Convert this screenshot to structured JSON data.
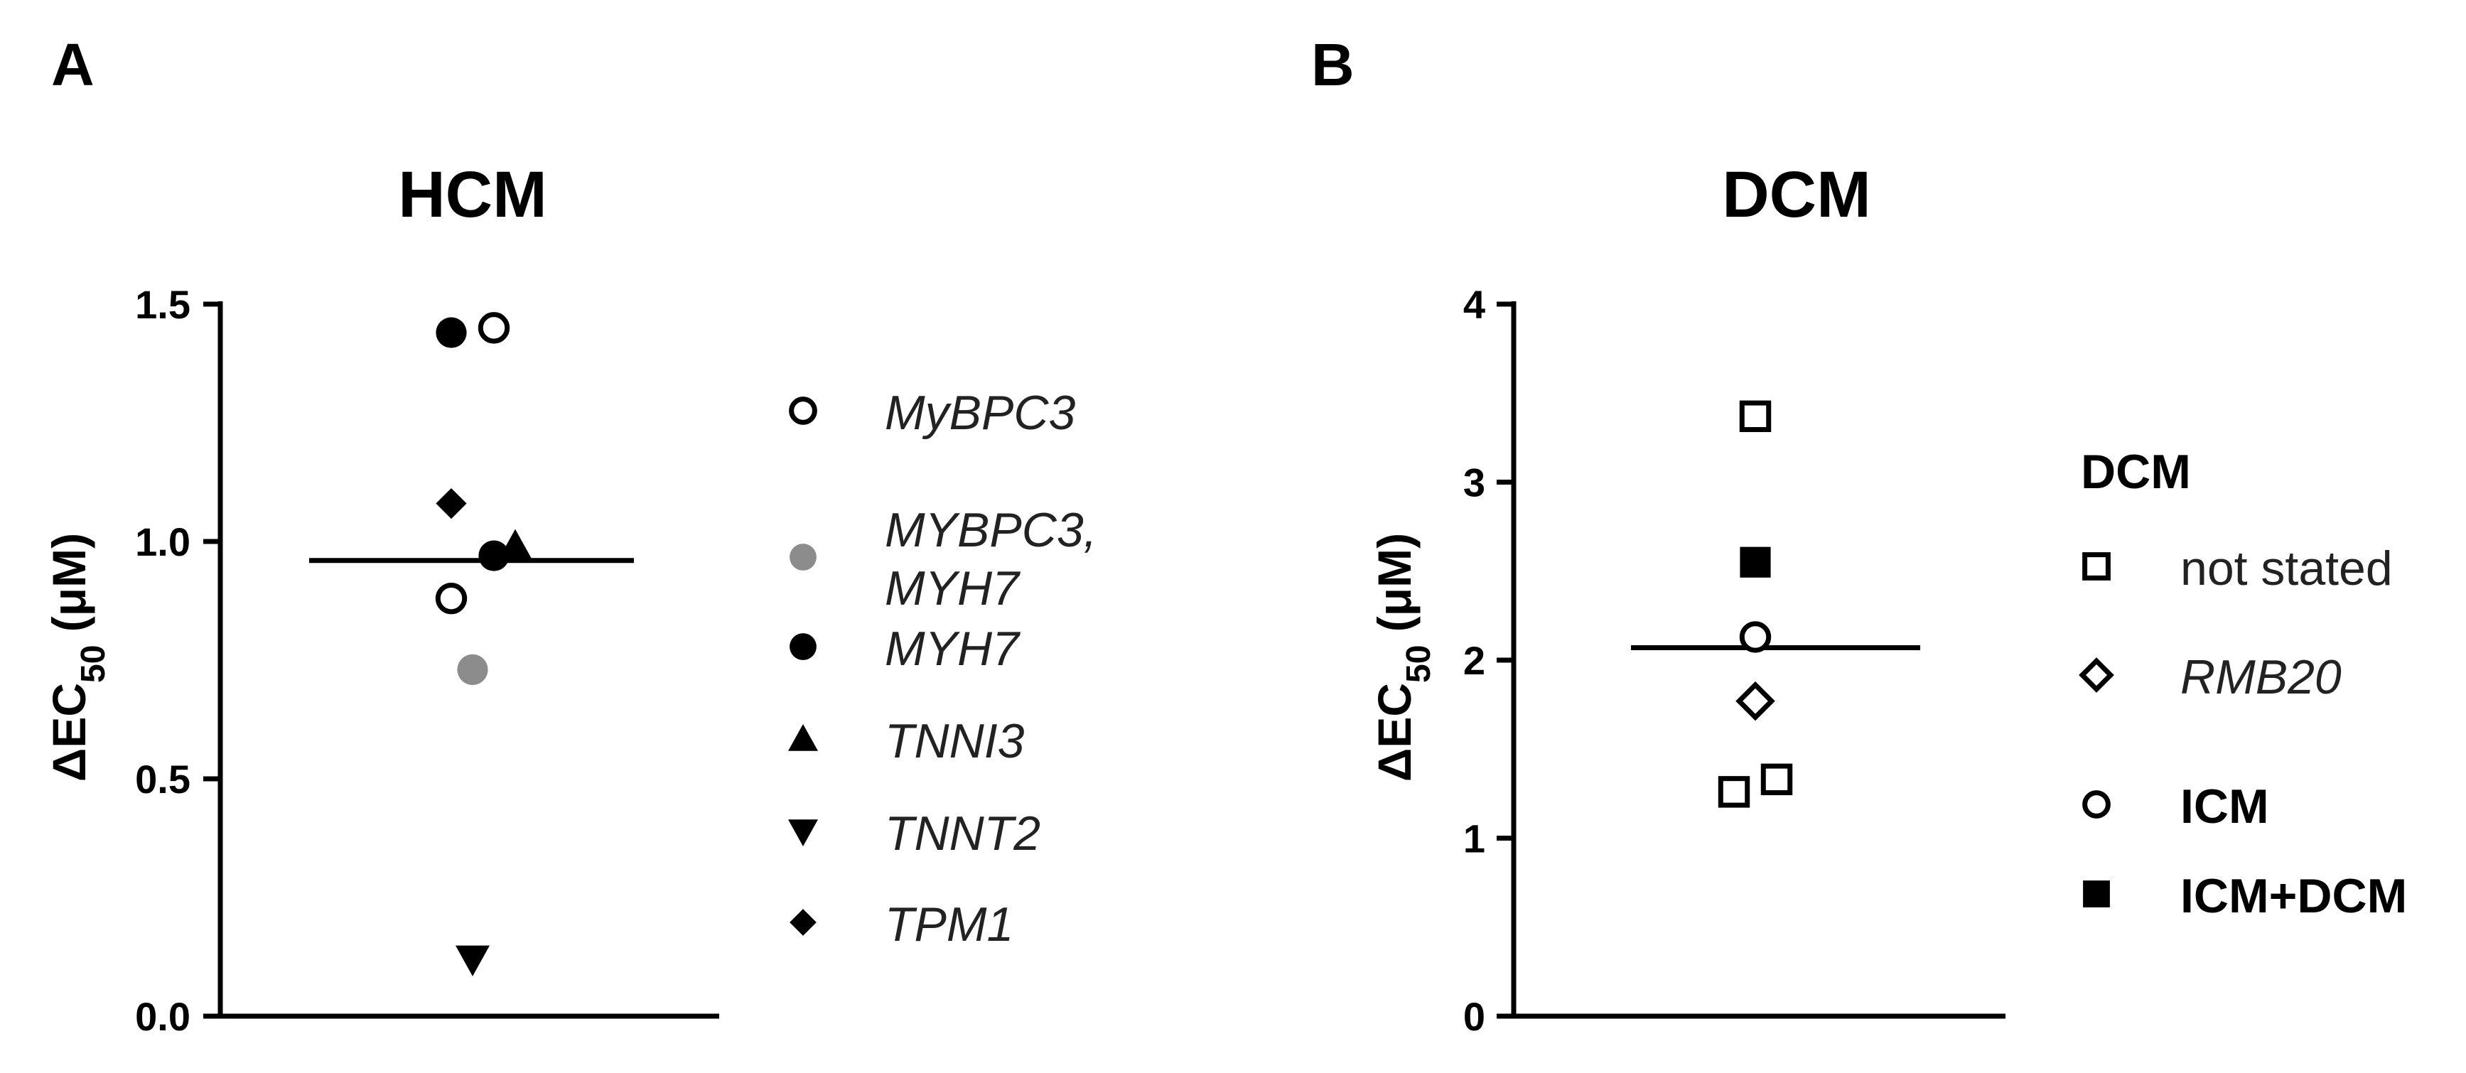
{
  "panels": {
    "a": {
      "letter": "A"
    },
    "b": {
      "letter": "B"
    }
  },
  "chart_data": [
    {
      "type": "scatter",
      "title": "HCM",
      "ylabel_prefix": "ΔEC",
      "ylabel_sub": "50",
      "ylabel_suffix": " (μM)",
      "ylim": [
        0,
        1.5
      ],
      "yticks": [
        {
          "value": 0,
          "label": "0.0"
        },
        {
          "value": 0.5,
          "label": "0.5"
        },
        {
          "value": 1.0,
          "label": "1.0"
        },
        {
          "value": 1.5,
          "label": "1.5"
        }
      ],
      "mean": 0.96,
      "grid": false,
      "legend_position": "right",
      "legend": [
        {
          "key": "mybpc3",
          "lines": [
            "MyBPC3"
          ],
          "marker": "circle-open",
          "color": "#000000",
          "italic": true
        },
        {
          "key": "mybpc3_myh7",
          "lines": [
            "MYBPC3,",
            "MYH7"
          ],
          "marker": "circle-filled",
          "color": "#8c8c8c",
          "italic": true
        },
        {
          "key": "myh7",
          "lines": [
            "MYH7"
          ],
          "marker": "circle-filled",
          "color": "#000000",
          "italic": true
        },
        {
          "key": "tnni3",
          "lines": [
            "TNNI3"
          ],
          "marker": "triangle-up",
          "color": "#000000",
          "italic": true
        },
        {
          "key": "tnnt2",
          "lines": [
            "TNNT2"
          ],
          "marker": "triangle-down",
          "color": "#000000",
          "italic": true
        },
        {
          "key": "tpm1",
          "lines": [
            "TPM1"
          ],
          "marker": "diamond",
          "color": "#000000",
          "italic": true
        }
      ],
      "points": [
        {
          "series": "myh7",
          "y": 1.44,
          "jitter": -1
        },
        {
          "series": "mybpc3",
          "y": 1.45,
          "jitter": 1
        },
        {
          "series": "tpm1",
          "y": 1.08,
          "jitter": -1
        },
        {
          "series": "myh7",
          "y": 0.97,
          "jitter": 1
        },
        {
          "series": "tnni3",
          "y": 0.99,
          "jitter": 2
        },
        {
          "series": "mybpc3",
          "y": 0.88,
          "jitter": -1
        },
        {
          "series": "mybpc3_myh7",
          "y": 0.73,
          "jitter": 0
        },
        {
          "series": "tnnt2",
          "y": 0.12,
          "jitter": 0
        }
      ]
    },
    {
      "type": "scatter",
      "title": "DCM",
      "ylabel_prefix": "ΔEC",
      "ylabel_sub": "50",
      "ylabel_suffix": " (μM)",
      "ylim": [
        0,
        4
      ],
      "yticks": [
        {
          "value": 0,
          "label": "0"
        },
        {
          "value": 1,
          "label": "1"
        },
        {
          "value": 2,
          "label": "2"
        },
        {
          "value": 3,
          "label": "3"
        },
        {
          "value": 4,
          "label": "4"
        }
      ],
      "mean": 2.07,
      "grid": false,
      "legend_position": "right",
      "legend_title": "DCM",
      "legend": [
        {
          "key": "not_stated",
          "lines": [
            "not stated"
          ],
          "marker": "square-open",
          "color": "#000000",
          "italic": false,
          "bold": false
        },
        {
          "key": "rmb20",
          "lines": [
            "RMB20"
          ],
          "marker": "diamond-open",
          "color": "#000000",
          "italic": true,
          "bold": false
        },
        {
          "key": "icm",
          "lines": [
            "ICM"
          ],
          "marker": "circle-open",
          "color": "#000000",
          "italic": false,
          "bold": true
        },
        {
          "key": "icm_dcm",
          "lines": [
            "ICM+DCM"
          ],
          "marker": "square-filled",
          "color": "#000000",
          "italic": false,
          "bold": true
        }
      ],
      "points": [
        {
          "series": "not_stated",
          "y": 3.37,
          "jitter": 0
        },
        {
          "series": "icm_dcm",
          "y": 2.55,
          "jitter": 0
        },
        {
          "series": "icm",
          "y": 2.13,
          "jitter": 0
        },
        {
          "series": "rmb20",
          "y": 1.77,
          "jitter": 0
        },
        {
          "series": "not_stated",
          "y": 1.33,
          "jitter": 1
        },
        {
          "series": "not_stated",
          "y": 1.26,
          "jitter": -1
        }
      ]
    }
  ]
}
